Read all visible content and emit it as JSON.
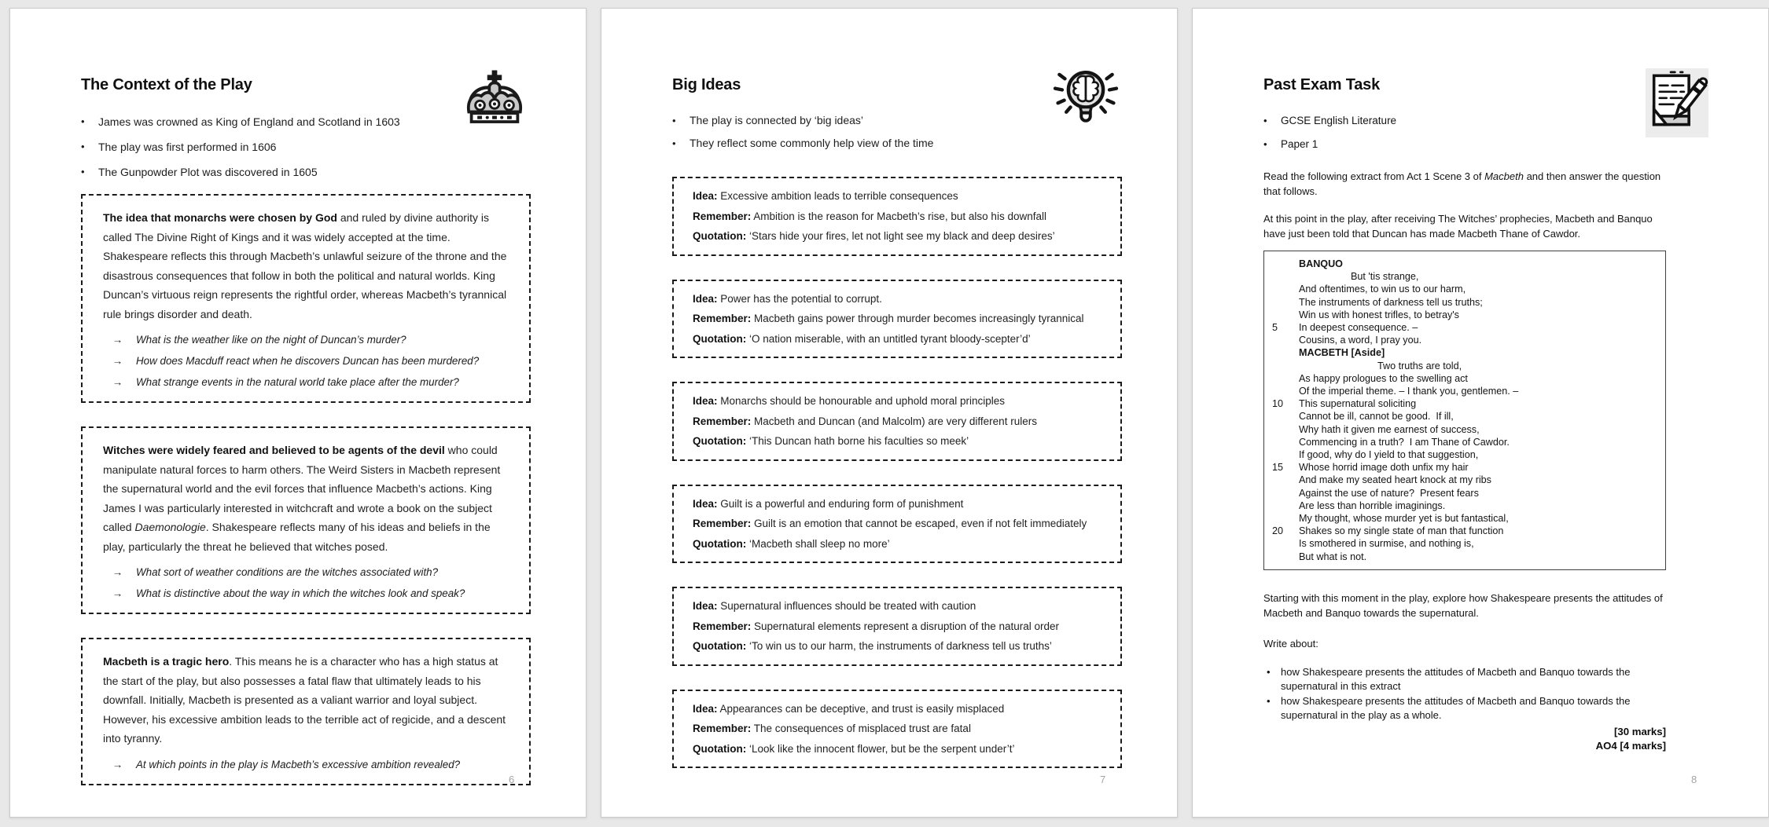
{
  "ui": {
    "background": "#e8e8e8",
    "page_background": "#ffffff",
    "dashed_border_color": "#1b1b1b",
    "icon_gray": "#c9c9c9",
    "glyphs": {
      "bullet": "•",
      "arrow": "→"
    }
  },
  "page1": {
    "page_number": "6",
    "title": "The Context of the Play",
    "icon": "crown-icon",
    "bullets": [
      "James was crowned as King of England and Scotland in 1603",
      "The play was first performed in 1606",
      "The Gunpowder Plot was discovered in 1605"
    ],
    "boxes": [
      {
        "segments": [
          {
            "t": "The idea that monarchs were chosen by God",
            "s": "b"
          },
          {
            "t": " and ruled by divine authority is called The Divine Right of Kings and it was widely accepted at the time. Shakespeare reflects this through Macbeth’s unlawful seizure of the throne and the disastrous consequences that follow in both the political and natural worlds. King Duncan’s virtuous reign represents the rightful order, whereas Macbeth’s tyrannical rule brings disorder and death.",
            "s": ""
          }
        ],
        "questions": [
          "What is the weather like on the night of Duncan’s murder?",
          "How does Macduff react when he discovers Duncan has been murdered?",
          "What strange events in the natural world take place after the murder?"
        ]
      },
      {
        "segments": [
          {
            "t": "Witches were widely feared and believed to be agents of the devil",
            "s": "b"
          },
          {
            "t": " who could manipulate natural forces to harm others. The Weird Sisters in Macbeth represent the supernatural world and the evil forces that influence Macbeth’s actions. King James I was particularly interested in witchcraft and wrote a book on the subject called ",
            "s": ""
          },
          {
            "t": "Daemonologie",
            "s": "i"
          },
          {
            "t": ". Shakespeare reflects many of his ideas and beliefs in the play, particularly the threat he believed that witches posed.",
            "s": ""
          }
        ],
        "questions": [
          "What sort of weather conditions are the witches associated with?",
          "What is distinctive about the way in which the witches look and speak?"
        ]
      },
      {
        "segments": [
          {
            "t": "Macbeth is a tragic hero",
            "s": "b"
          },
          {
            "t": ". This means he is a character who has a high status at the start of the play, but also possesses a fatal flaw that ultimately leads to his downfall. Initially, Macbeth is presented as a valiant warrior and loyal subject. However, his excessive ambition leads to the terrible act of regicide, and a descent into tyranny.",
            "s": ""
          }
        ],
        "questions": [
          "At which points in the play is Macbeth’s excessive ambition revealed?"
        ]
      }
    ]
  },
  "page2": {
    "page_number": "7",
    "title": "Big Ideas",
    "icon": "lightbulb-brain-icon",
    "bullets": [
      "The play is connected by ‘big ideas’",
      "They reflect some commonly help view of the time"
    ],
    "labels": {
      "idea": "Idea:",
      "remember": "Remember:",
      "quotation": "Quotation:"
    },
    "boxes": [
      {
        "idea": "Excessive ambition leads to terrible consequences",
        "remember": "Ambition is the reason for Macbeth’s rise, but also his downfall",
        "quotation": "‘Stars hide your fires, let not light see my black and deep desires’"
      },
      {
        "idea": "Power has the potential to corrupt.",
        "remember": "Macbeth gains power through murder becomes increasingly tyrannical",
        "quotation": "‘O nation miserable, with an untitled tyrant bloody-scepter’d’"
      },
      {
        "idea": "Monarchs should be honourable and uphold moral principles",
        "remember": "Macbeth and Duncan (and Malcolm) are very different rulers",
        "quotation": "‘This Duncan hath borne his faculties so meek’"
      },
      {
        "idea": "Guilt is a powerful and enduring form of punishment",
        "remember": "Guilt is an emotion that cannot be escaped, even if not felt immediately",
        "quotation": "‘Macbeth shall sleep no more’"
      },
      {
        "idea": "Supernatural influences should be treated with caution",
        "remember": "Supernatural elements represent a disruption of the natural order",
        "quotation": "‘To win us to our harm, the instruments of darkness tell us truths’"
      },
      {
        "idea": "Appearances can be deceptive, and trust is easily misplaced",
        "remember": "The consequences of misplaced trust are fatal",
        "quotation": "‘Look like the innocent flower, but be the serpent under’t’"
      }
    ]
  },
  "page3": {
    "page_number": "8",
    "title": "Past Exam Task",
    "icon": "exam-paper-pen-icon",
    "bullets": [
      "GCSE English Literature",
      "Paper 1"
    ],
    "intro_paragraphs": [
      {
        "lines": [
          [
            {
              "t": "Read the following extract from Act 1 Scene 3 of ",
              "s": ""
            },
            {
              "t": "Macbeth",
              "s": "i"
            },
            {
              "t": " and then answer the question",
              "s": ""
            }
          ],
          [
            {
              "t": "that follows.",
              "s": ""
            }
          ]
        ]
      },
      {
        "lines": [
          [
            {
              "t": "At this point in the play, after receiving The Witches’ prophecies, Macbeth and Banquo",
              "s": ""
            }
          ],
          [
            {
              "t": "have just been told that Duncan has made Macbeth Thane of Cawdor.",
              "s": ""
            }
          ]
        ]
      }
    ],
    "extract": [
      {
        "n": "",
        "t": "BANQUO",
        "c": "sp"
      },
      {
        "n": "",
        "t": "But 'tis strange,",
        "c": "ind1"
      },
      {
        "n": "",
        "t": "And oftentimes, to win us to our harm,",
        "c": ""
      },
      {
        "n": "",
        "t": "The instruments of darkness tell us truths;",
        "c": ""
      },
      {
        "n": "",
        "t": "Win us with honest trifles, to betray's",
        "c": ""
      },
      {
        "n": "5",
        "t": "In deepest consequence. –",
        "c": ""
      },
      {
        "n": "",
        "t": "Cousins, a word, I pray you.",
        "c": ""
      },
      {
        "n": "",
        "t": "MACBETH [Aside]",
        "c": "sp"
      },
      {
        "n": "",
        "t": "Two truths are told,",
        "c": "ind2"
      },
      {
        "n": "",
        "t": "As happy prologues to the swelling act",
        "c": ""
      },
      {
        "n": "",
        "t": "Of the imperial theme. – I thank you, gentlemen. –",
        "c": ""
      },
      {
        "n": "10",
        "t": "This supernatural soliciting",
        "c": ""
      },
      {
        "n": "",
        "t": "Cannot be ill, cannot be good.  If ill,",
        "c": ""
      },
      {
        "n": "",
        "t": "Why hath it given me earnest of success,",
        "c": ""
      },
      {
        "n": "",
        "t": "Commencing in a truth?  I am Thane of Cawdor.",
        "c": ""
      },
      {
        "n": "",
        "t": "If good, why do I yield to that suggestion,",
        "c": ""
      },
      {
        "n": "15",
        "t": "Whose horrid image doth unfix my hair",
        "c": ""
      },
      {
        "n": "",
        "t": "And make my seated heart knock at my ribs",
        "c": ""
      },
      {
        "n": "",
        "t": "Against the use of nature?  Present fears",
        "c": ""
      },
      {
        "n": "",
        "t": "Are less than horrible imaginings.",
        "c": ""
      },
      {
        "n": "",
        "t": "My thought, whose murder yet is but fantastical,",
        "c": ""
      },
      {
        "n": "20",
        "t": "Shakes so my single state of man that function",
        "c": ""
      },
      {
        "n": "",
        "t": "Is smothered in surmise, and nothing is,",
        "c": ""
      },
      {
        "n": "",
        "t": "But what is not.",
        "c": ""
      }
    ],
    "question_paragraph": {
      "lines": [
        [
          {
            "t": "Starting with this moment in the play, explore how Shakespeare presents the attitudes of",
            "s": ""
          }
        ],
        [
          {
            "t": "Macbeth and Banquo towards the supernatural.",
            "s": ""
          }
        ]
      ]
    },
    "write_about_label": "Write about:",
    "write_about": [
      {
        "lines": [
          "how Shakespeare presents the attitudes of Macbeth and Banquo towards the",
          "supernatural in this extract"
        ]
      },
      {
        "lines": [
          "how Shakespeare presents the attitudes of Macbeth and Banquo towards the",
          "supernatural in the play as a whole."
        ]
      }
    ],
    "marks": [
      "[30 marks]",
      "AO4 [4 marks]"
    ]
  }
}
